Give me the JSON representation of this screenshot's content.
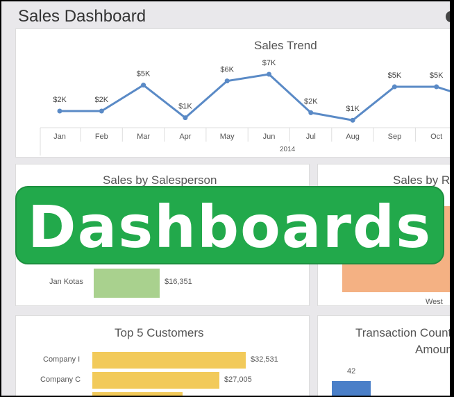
{
  "header": {
    "title": "Sales Dashboard"
  },
  "colors": {
    "line": "#5a8ac6",
    "green_bar": "#a9d18e",
    "orange_bar": "#f4b183",
    "yellow_bar": "#f2ca5a",
    "blue_bar": "#4a7fc8",
    "banner": "#22a94b"
  },
  "chart_data": [
    {
      "type": "line",
      "title": "Sales Trend",
      "xlabel": "2014",
      "categories": [
        "Jan",
        "Feb",
        "Mar",
        "Apr",
        "May",
        "Jun",
        "Jul",
        "Aug",
        "Sep",
        "Oct"
      ],
      "values": [
        2.2,
        2.2,
        5.3,
        1.4,
        5.8,
        6.6,
        2.0,
        1.1,
        5.1,
        5.1
      ],
      "labels": [
        "$2K",
        "$2K",
        "$5K",
        "$1K",
        "$6K",
        "$7K",
        "$2K",
        "$1K",
        "$5K",
        "$5K"
      ],
      "units": "thousands USD"
    },
    {
      "type": "bar",
      "title": "Sales by Salesperson",
      "categories": [
        "Jan Kotas"
      ],
      "values": [
        16351
      ],
      "labels": [
        "$16,351"
      ]
    },
    {
      "type": "bar",
      "title": "Sales by Region",
      "categories": [
        "West"
      ]
    },
    {
      "type": "bar",
      "title": "Top 5 Customers",
      "categories": [
        "Company I",
        "Company C"
      ],
      "values": [
        32531,
        27005
      ],
      "labels": [
        "$32,531",
        "$27,005"
      ]
    },
    {
      "type": "bar",
      "title_line1": "Transaction Count",
      "title_line2": "Amount",
      "values": [
        42
      ],
      "labels": [
        "42"
      ]
    }
  ],
  "overlay": {
    "banner_text": "Dashboards"
  }
}
